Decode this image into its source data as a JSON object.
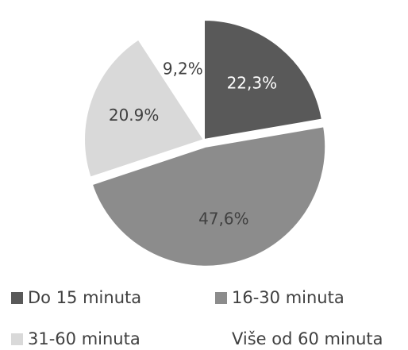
{
  "chart_data": {
    "type": "pie",
    "title": "",
    "categories": [
      "Do 15 minuta",
      "16-30 minuta",
      "31-60 minuta",
      "Više od 60 minuta"
    ],
    "values": [
      22.3,
      47.6,
      20.9,
      9.2
    ],
    "value_labels": [
      "22,3%",
      "47,6%",
      "20.9%",
      "9,2%"
    ],
    "colors": [
      "#595959",
      "#8c8c8c",
      "#d9d9d9",
      "#ffffff"
    ],
    "label_colors": [
      "#ffffff",
      "#404040",
      "#404040",
      "#404040"
    ],
    "exploded": "16-30 minuta",
    "legend_position": "bottom"
  }
}
